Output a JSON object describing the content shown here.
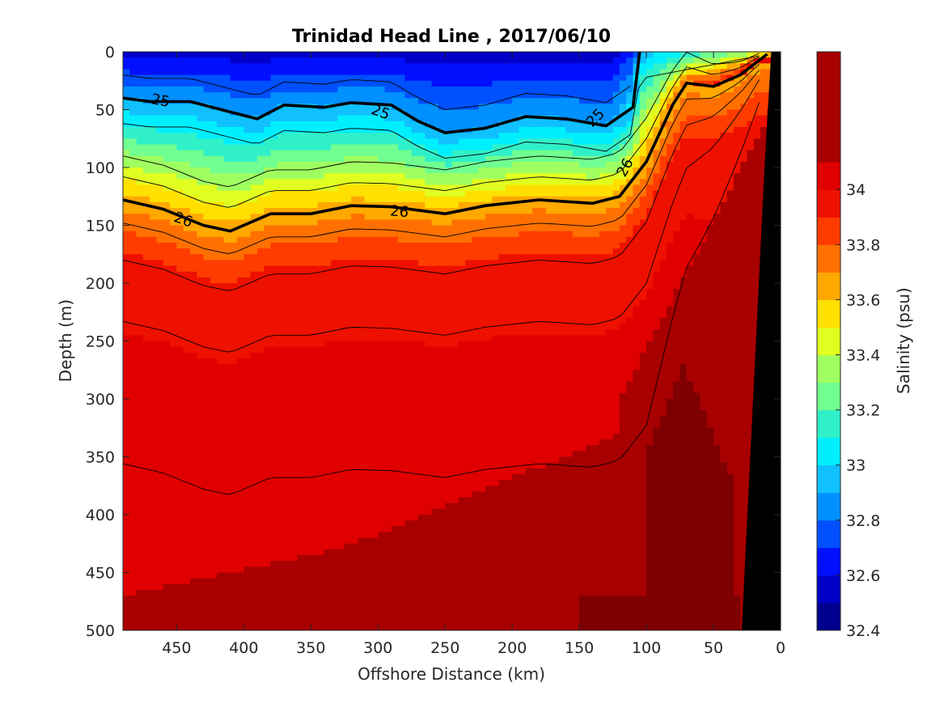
{
  "chart_data": {
    "type": "heatmap",
    "title": "Trinidad Head Line , 2017/06/10",
    "xlabel": "Offshore Distance (km)",
    "ylabel": "Depth (m)",
    "colorbar_label": "Salinity (psu)",
    "xlim": [
      490,
      0
    ],
    "ylim": [
      0,
      500
    ],
    "x_ticks": [
      450,
      400,
      350,
      300,
      250,
      200,
      150,
      100,
      50,
      0
    ],
    "y_ticks": [
      0,
      50,
      100,
      150,
      200,
      250,
      300,
      350,
      400,
      450,
      500
    ],
    "colorbar_ticks": [
      32.4,
      32.6,
      32.8,
      33,
      33.2,
      33.4,
      33.6,
      33.8,
      34
    ],
    "colorbar_range": [
      32.4,
      34.5
    ],
    "colorbar_levels": [
      {
        "from": 32.4,
        "to": 32.5,
        "color": "#00008f"
      },
      {
        "from": 32.5,
        "to": 32.6,
        "color": "#0000c8"
      },
      {
        "from": 32.6,
        "to": 32.7,
        "color": "#0010ff"
      },
      {
        "from": 32.7,
        "to": 32.8,
        "color": "#0050ff"
      },
      {
        "from": 32.8,
        "to": 32.9,
        "color": "#0090ff"
      },
      {
        "from": 32.9,
        "to": 33.0,
        "color": "#10c0ff"
      },
      {
        "from": 33.0,
        "to": 33.1,
        "color": "#00efff"
      },
      {
        "from": 33.1,
        "to": 33.2,
        "color": "#30f0c8"
      },
      {
        "from": 33.2,
        "to": 33.3,
        "color": "#70ff90"
      },
      {
        "from": 33.3,
        "to": 33.4,
        "color": "#a0ff60"
      },
      {
        "from": 33.4,
        "to": 33.5,
        "color": "#e0ff20"
      },
      {
        "from": 33.5,
        "to": 33.6,
        "color": "#ffe000"
      },
      {
        "from": 33.6,
        "to": 33.7,
        "color": "#ffa800"
      },
      {
        "from": 33.7,
        "to": 33.8,
        "color": "#ff7000"
      },
      {
        "from": 33.8,
        "to": 33.9,
        "color": "#ff3c00"
      },
      {
        "from": 33.9,
        "to": 34.0,
        "color": "#ee1000"
      },
      {
        "from": 34.0,
        "to": 34.1,
        "color": "#e00000"
      },
      {
        "from": 34.1,
        "to": 34.5,
        "color": "#a80000"
      }
    ],
    "deep_color": "#7e0000",
    "bottom_color": "#000000",
    "isopycnals": [
      {
        "label": "25",
        "points": [
          [
            490,
            40
          ],
          [
            470,
            43
          ],
          [
            440,
            43
          ],
          [
            410,
            52
          ],
          [
            390,
            58
          ],
          [
            370,
            46
          ],
          [
            340,
            48
          ],
          [
            320,
            44
          ],
          [
            290,
            46
          ],
          [
            270,
            60
          ],
          [
            250,
            70
          ],
          [
            220,
            66
          ],
          [
            190,
            56
          ],
          [
            160,
            58
          ],
          [
            130,
            64
          ],
          [
            110,
            48
          ],
          [
            105,
            0
          ]
        ]
      },
      {
        "label": "26",
        "points": [
          [
            490,
            128
          ],
          [
            460,
            136
          ],
          [
            430,
            150
          ],
          [
            410,
            155
          ],
          [
            380,
            140
          ],
          [
            350,
            140
          ],
          [
            320,
            133
          ],
          [
            290,
            134
          ],
          [
            250,
            140
          ],
          [
            220,
            133
          ],
          [
            180,
            128
          ],
          [
            140,
            131
          ],
          [
            120,
            125
          ],
          [
            100,
            95
          ],
          [
            80,
            45
          ],
          [
            70,
            27
          ],
          [
            50,
            30
          ],
          [
            30,
            20
          ],
          [
            10,
            2
          ]
        ]
      }
    ],
    "contour_labels": [
      {
        "text": "25",
        "x": 462,
        "y": 42,
        "angle": 10
      },
      {
        "text": "25",
        "x": 298,
        "y": 52,
        "angle": 20
      },
      {
        "text": "25",
        "x": 138,
        "y": 57,
        "angle": -45
      },
      {
        "text": "26",
        "x": 445,
        "y": 145,
        "angle": 20
      },
      {
        "text": "26",
        "x": 284,
        "y": 138,
        "angle": 5
      },
      {
        "text": "26",
        "x": 116,
        "y": 100,
        "angle": -62
      }
    ]
  }
}
